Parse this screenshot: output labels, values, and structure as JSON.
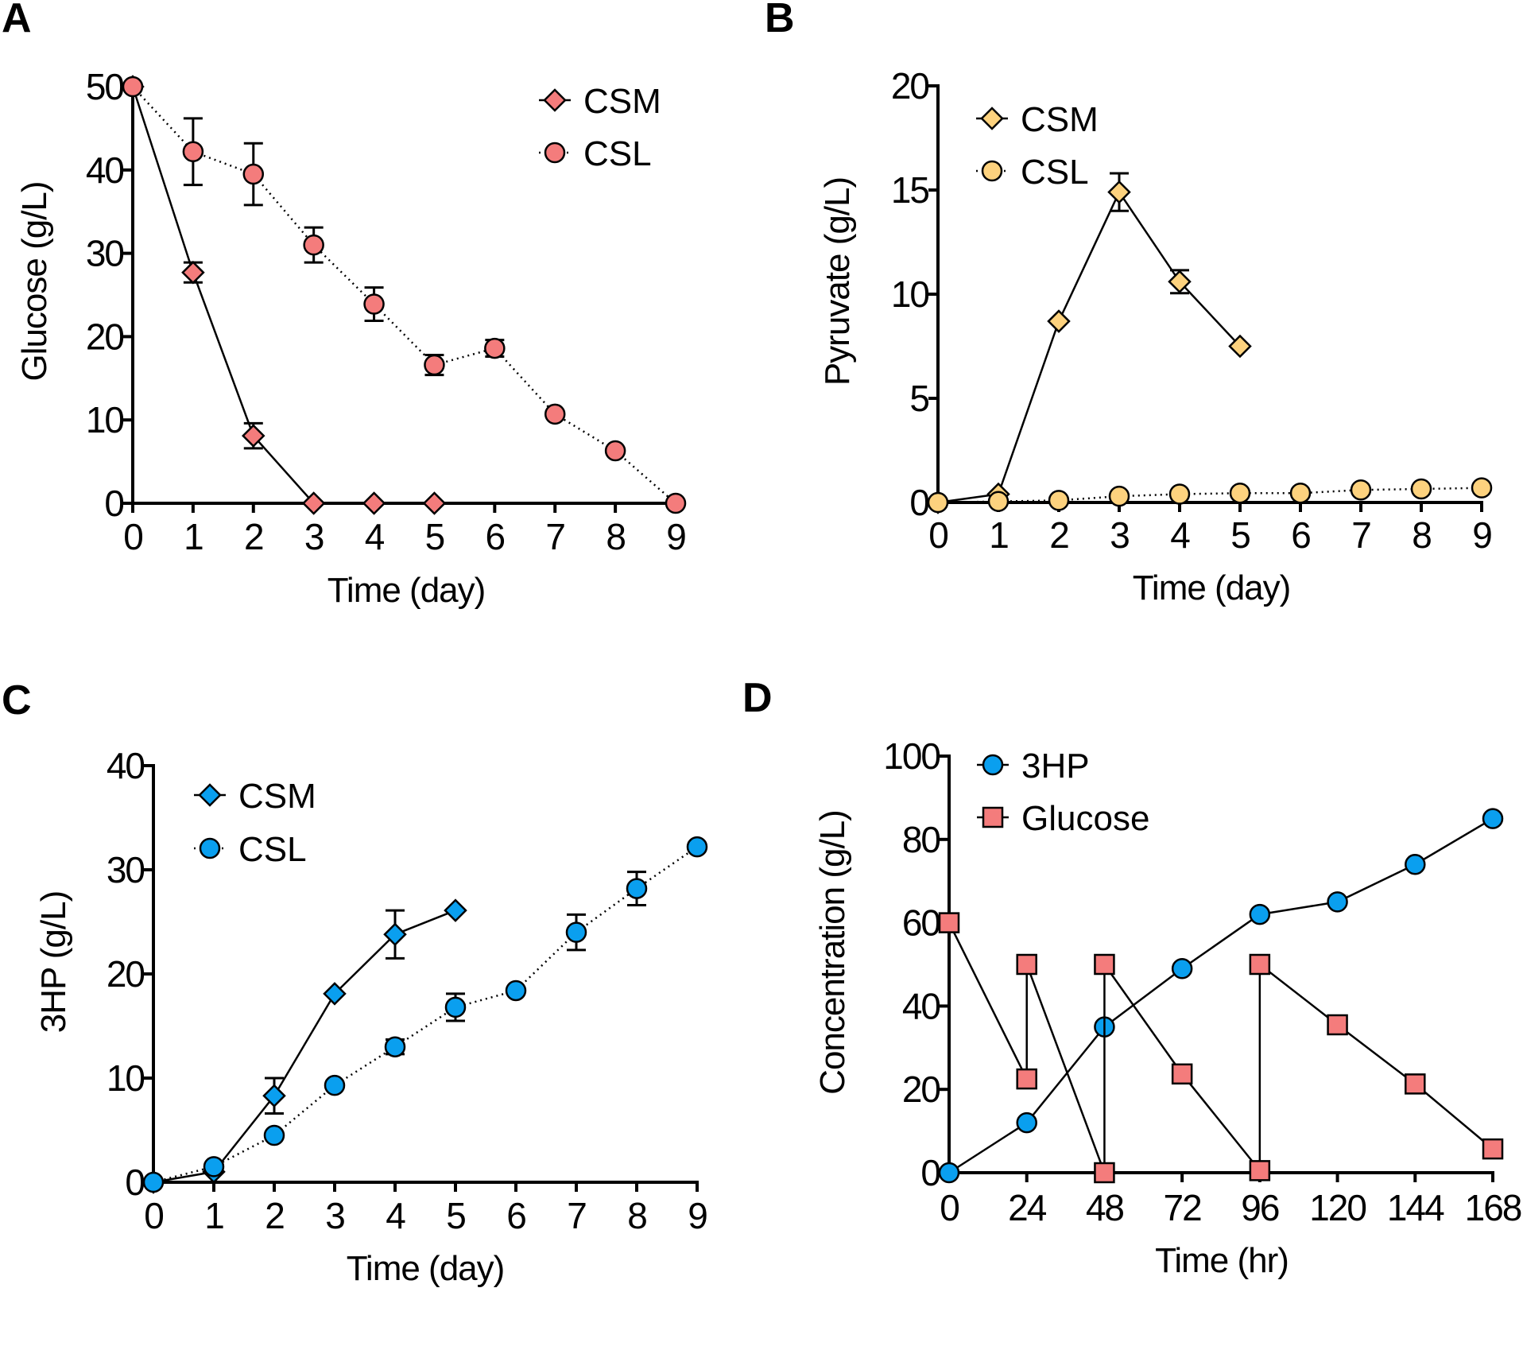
{
  "chart_data": [
    {
      "panel": "A",
      "type": "line",
      "xlabel": "Time (day)",
      "ylabel": "Glucose (g/L)",
      "xlim": [
        0,
        9
      ],
      "ylim": [
        0,
        50
      ],
      "xticks": [
        0,
        1,
        2,
        3,
        4,
        5,
        6,
        7,
        8,
        9
      ],
      "yticks": [
        0,
        10,
        20,
        30,
        40,
        50
      ],
      "legend_position": "top-right",
      "series": [
        {
          "name": "CSM",
          "marker": "diamond",
          "color": "#F47C7C",
          "line": "solid",
          "x": [
            0,
            1,
            2,
            3,
            4,
            5
          ],
          "y": [
            50,
            27.7,
            8.1,
            0,
            0,
            0
          ],
          "err": [
            0,
            1.2,
            1.5,
            0,
            0,
            0
          ]
        },
        {
          "name": "CSL",
          "marker": "circle",
          "color": "#F47C7C",
          "line": "dotted",
          "x": [
            0,
            1,
            2,
            3,
            4,
            5,
            6,
            7,
            8,
            9
          ],
          "y": [
            50,
            42.2,
            39.5,
            31,
            23.9,
            16.6,
            18.6,
            10.7,
            6.3,
            0
          ],
          "err": [
            0,
            4,
            3.7,
            2.1,
            2,
            1.2,
            1,
            0,
            0,
            0
          ]
        }
      ]
    },
    {
      "panel": "B",
      "type": "line",
      "xlabel": "Time (day)",
      "ylabel": "Pyruvate (g/L)",
      "xlim": [
        0,
        9
      ],
      "ylim": [
        0,
        20
      ],
      "xticks": [
        0,
        1,
        2,
        3,
        4,
        5,
        6,
        7,
        8,
        9
      ],
      "yticks": [
        0,
        5,
        10,
        15,
        20
      ],
      "legend_position": "top-left",
      "series": [
        {
          "name": "CSM",
          "marker": "diamond",
          "color": "#FDD27E",
          "line": "solid",
          "x": [
            0,
            1,
            2,
            3,
            4,
            5
          ],
          "y": [
            0,
            0.4,
            8.7,
            14.9,
            10.6,
            7.5
          ],
          "err": [
            0,
            0,
            0,
            0.9,
            0.55,
            0
          ]
        },
        {
          "name": "CSL",
          "marker": "circle",
          "color": "#FDD27E",
          "line": "dotted",
          "x": [
            0,
            1,
            2,
            3,
            4,
            5,
            6,
            7,
            8,
            9
          ],
          "y": [
            0,
            0.05,
            0.1,
            0.3,
            0.4,
            0.45,
            0.45,
            0.6,
            0.65,
            0.7
          ],
          "err": [
            0,
            0,
            0,
            0,
            0,
            0,
            0,
            0,
            0,
            0
          ]
        }
      ]
    },
    {
      "panel": "C",
      "type": "line",
      "xlabel": "Time (day)",
      "ylabel": "3HP (g/L)",
      "xlim": [
        0,
        9
      ],
      "ylim": [
        0,
        40
      ],
      "xticks": [
        0,
        1,
        2,
        3,
        4,
        5,
        6,
        7,
        8,
        9
      ],
      "yticks": [
        0,
        10,
        20,
        30,
        40
      ],
      "legend_position": "top-left",
      "series": [
        {
          "name": "CSM",
          "marker": "diamond",
          "color": "#0A9FEF",
          "line": "solid",
          "x": [
            0,
            1,
            2,
            3,
            4,
            5
          ],
          "y": [
            0,
            1,
            8.3,
            18.1,
            23.8,
            26.1
          ],
          "err": [
            0,
            0,
            1.7,
            0,
            2.3,
            0
          ]
        },
        {
          "name": "CSL",
          "marker": "circle",
          "color": "#0A9FEF",
          "line": "dotted",
          "x": [
            0,
            1,
            2,
            3,
            4,
            5,
            6,
            7,
            8,
            9
          ],
          "y": [
            0,
            1.5,
            4.5,
            9.3,
            13,
            16.8,
            18.4,
            24,
            28.2,
            32.2
          ],
          "err": [
            0,
            0,
            0,
            0,
            0.7,
            1.3,
            0,
            1.7,
            1.6,
            0
          ]
        }
      ]
    },
    {
      "panel": "D",
      "type": "line",
      "xlabel": "Time (hr)",
      "ylabel": "Concentration (g/L)",
      "xlim": [
        0,
        168
      ],
      "ylim": [
        0,
        100
      ],
      "xticks": [
        0,
        24,
        48,
        72,
        96,
        120,
        144,
        168
      ],
      "yticks": [
        0,
        20,
        40,
        60,
        80,
        100
      ],
      "legend_position": "top-left",
      "series": [
        {
          "name": "3HP",
          "marker": "circle",
          "color": "#0A9FEF",
          "line": "solid",
          "x": [
            0,
            24,
            48,
            72,
            96,
            120,
            144,
            168
          ],
          "y": [
            0,
            12,
            35,
            49,
            62,
            65,
            74,
            85
          ],
          "err": [
            0,
            0,
            0,
            0,
            0,
            0,
            0,
            0
          ]
        },
        {
          "name": "Glucose",
          "marker": "square",
          "color": "#F47C7C",
          "line": "solid",
          "x": [
            0,
            24,
            24,
            48,
            48,
            72,
            96,
            96,
            120,
            144,
            168
          ],
          "y": [
            60,
            22.5,
            50,
            0,
            50,
            23.7,
            0.5,
            50,
            35.5,
            21.3,
            5.7
          ],
          "err": [
            0,
            0,
            0,
            0,
            0,
            0,
            0,
            0,
            0,
            0,
            0
          ]
        }
      ]
    }
  ]
}
